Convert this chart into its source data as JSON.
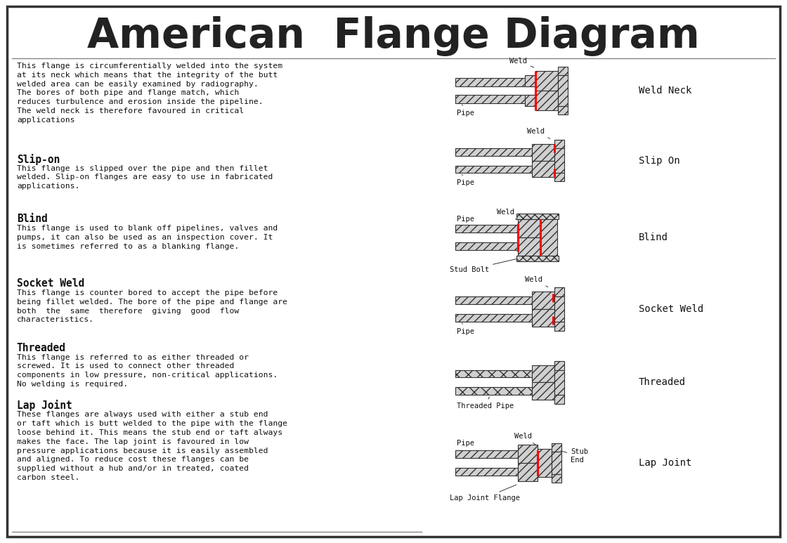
{
  "title": "American  Flange Diagram",
  "background": "#ffffff",
  "border_color": "#444444",
  "sections": [
    {
      "heading": null,
      "body": "This flange is circumferentially welded into the system\nat its neck which means that the integrity of the butt\nwelded area can be easily examined by radiography.\nThe bores of both pipe and flange match, which\nreduces turbulence and erosion inside the pipeline.\nThe weld neck is therefore favoured in critical\napplications"
    },
    {
      "heading": "Slip-on",
      "body": "This flange is slipped over the pipe and then fillet\nwelded. Slip-on flanges are easy to use in fabricated\napplications."
    },
    {
      "heading": "Blind",
      "body": "This flange is used to blank off pipelines, valves and\npumps, it can also be used as an inspection cover. It\nis sometimes referred to as a blanking flange."
    },
    {
      "heading": "Socket Weld",
      "body": "This flange is counter bored to accept the pipe before\nbeing fillet welded. The bore of the pipe and flange are\nboth  the  same  therefore  giving  good  flow\ncharacteristics."
    },
    {
      "heading": "Threaded",
      "body": "This flange is referred to as either threaded or\nscrewed. It is used to connect other threaded\ncomponents in low pressure, non-critical applications.\nNo welding is required."
    },
    {
      "heading": "Lap Joint",
      "body": "These flanges are always used with either a stub end\nor taft which is butt welded to the pipe with the flange\nloose behind it. This means the stub end or taft always\nmakes the face. The lap joint is favoured in low\npressure applications because it is easily assembled\nand aligned. To reduce cost these flanges can be\nsupplied without a hub and/or in treated, coated\ncarbon steel."
    }
  ]
}
